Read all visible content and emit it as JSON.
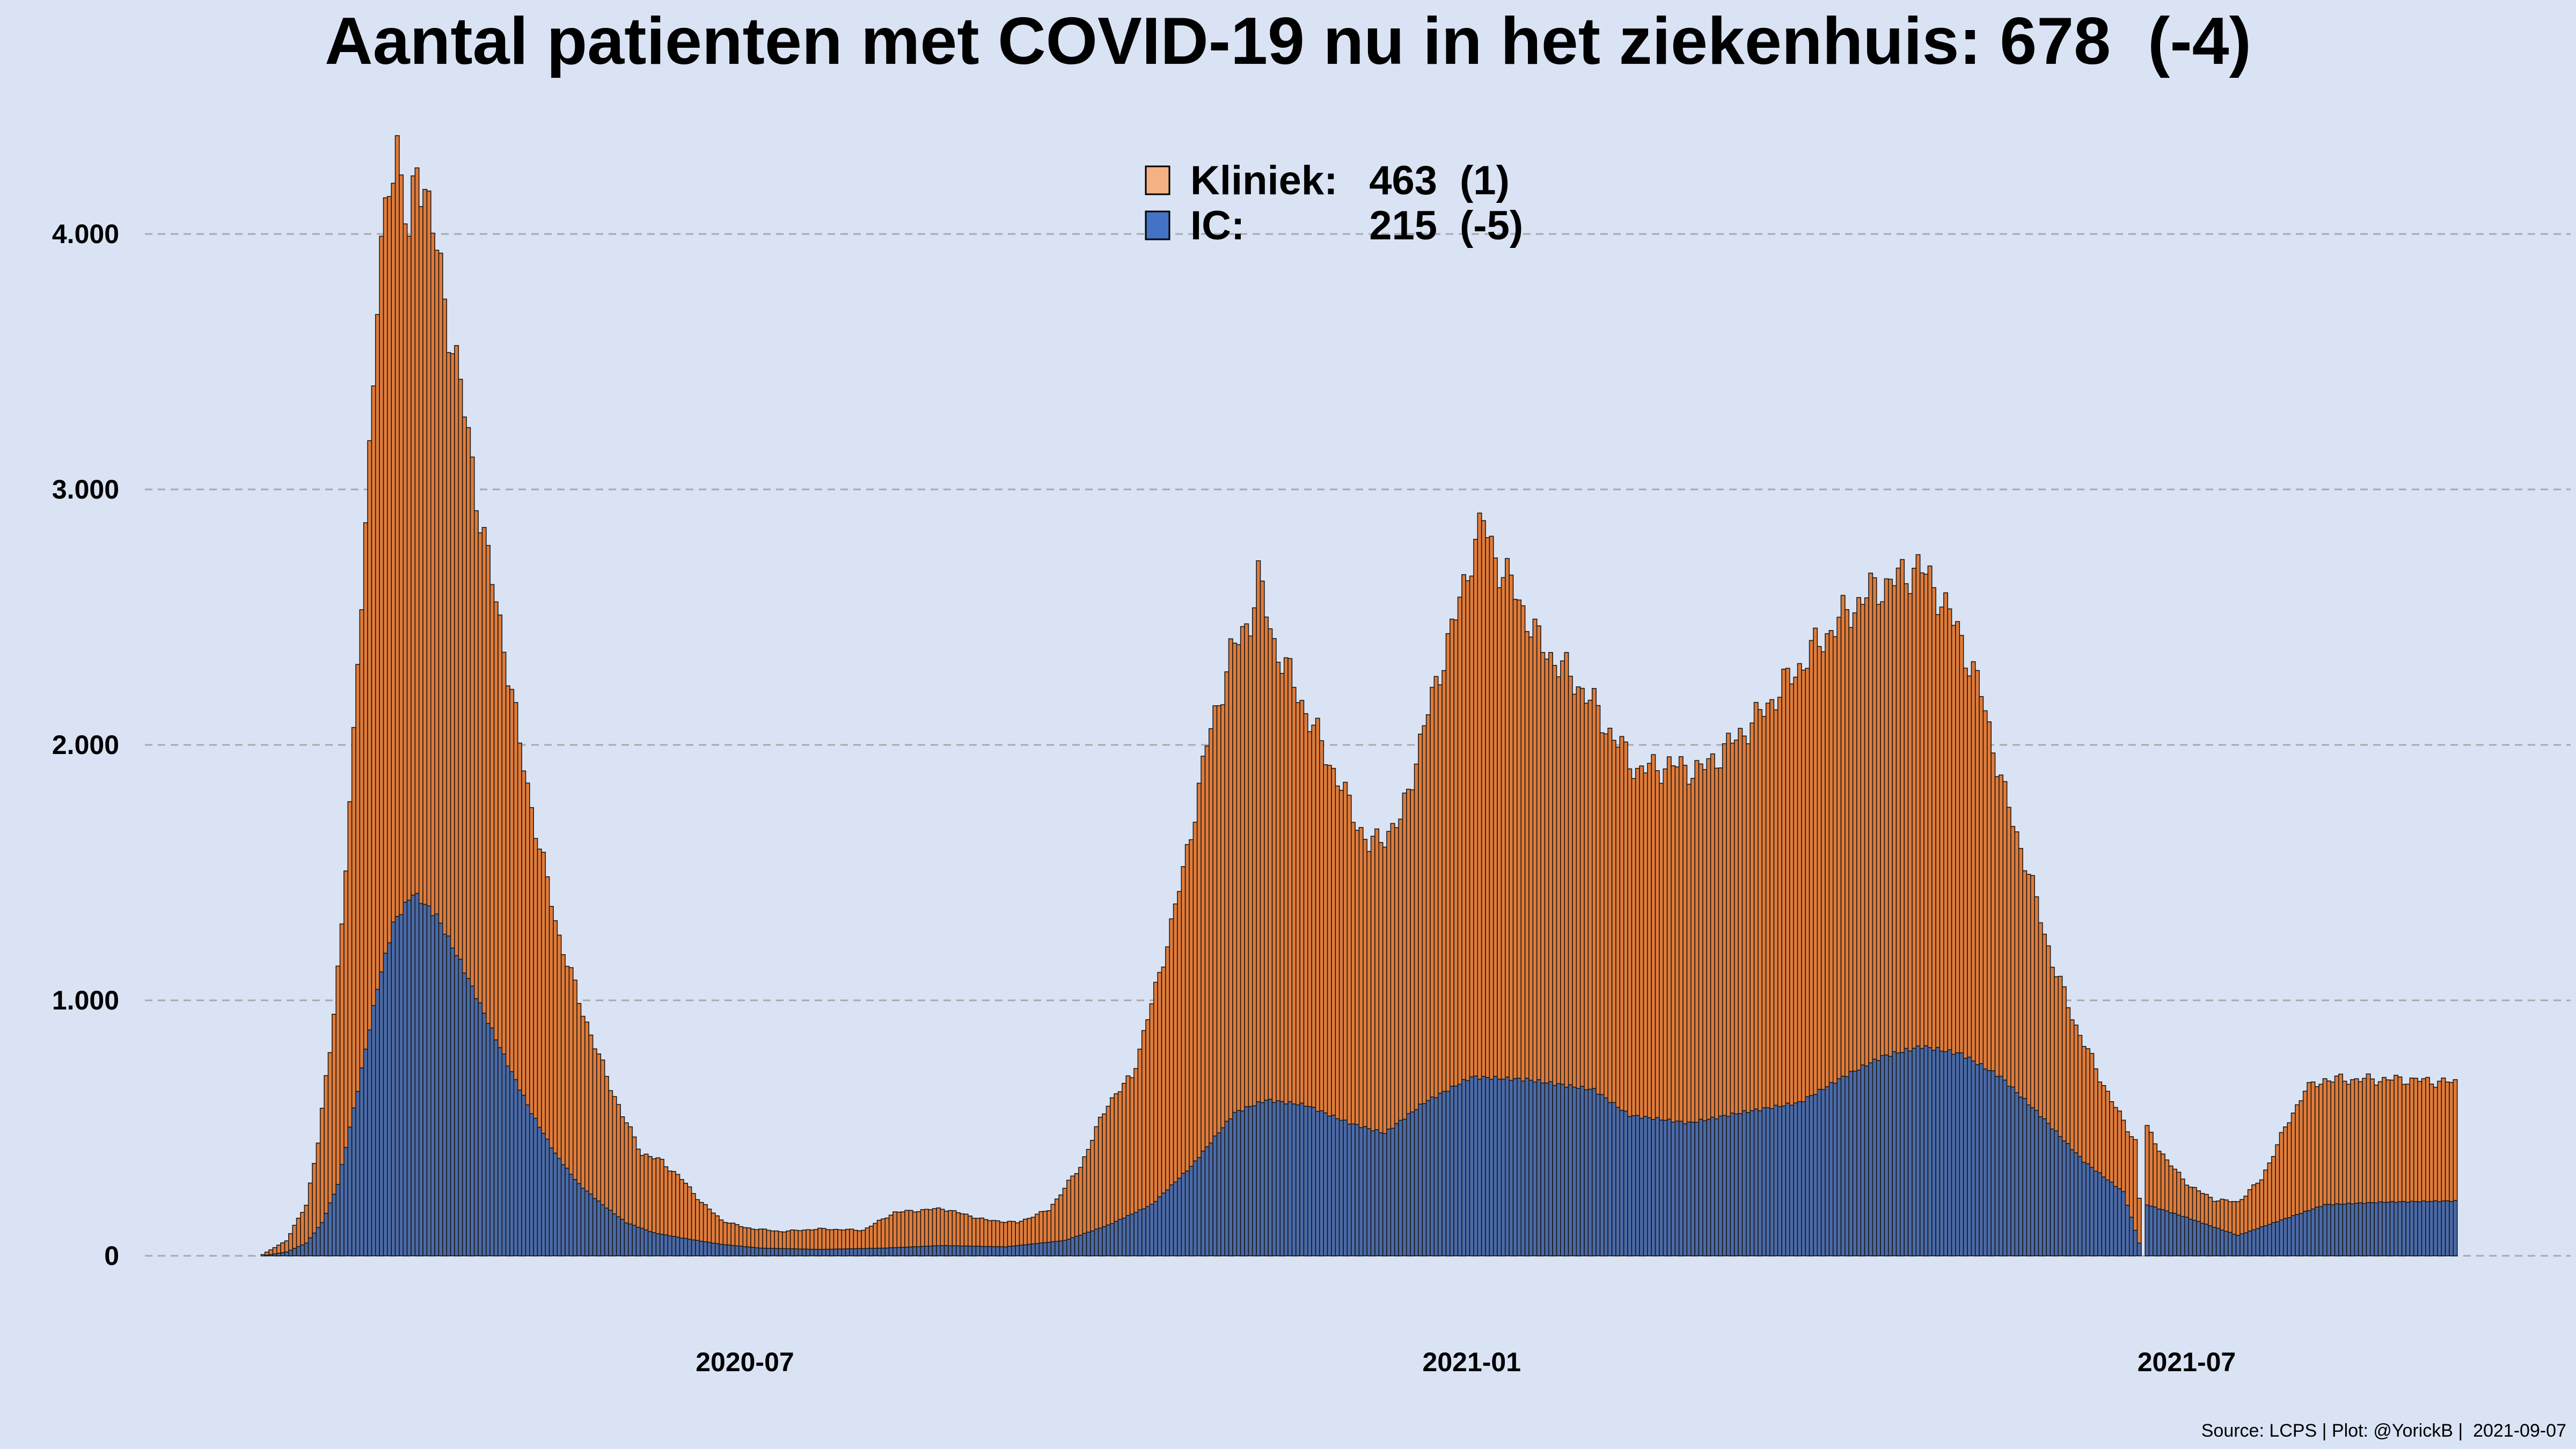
{
  "title": "Aantal patienten met COVID-19 nu in het ziekenhuis: 678  (-4)",
  "source_note": "Source: LCPS | Plot: @YorickB |  2021-09-07",
  "colors": {
    "background": "#d9e3f4",
    "kliniek": "#e07b39",
    "ic": "#4a6aa8",
    "legend_kliniek": "#f4b183",
    "legend_ic": "#4472c4",
    "grid": "#a9a9a9",
    "bar_outline": "#1a1a1a"
  },
  "legend": {
    "placement": "top-center",
    "items": [
      {
        "label": "Kliniek:",
        "value": "463",
        "change": "(1)",
        "color_key": "legend_kliniek"
      },
      {
        "label": "IC:",
        "value": "215",
        "change": "(-5)",
        "color_key": "legend_ic"
      }
    ]
  },
  "chart_data": {
    "type": "bar",
    "stacked": true,
    "title": "Aantal patienten met COVID-19 nu in het ziekenhuis: 678  (-4)",
    "xlabel": "",
    "ylabel": "",
    "ylim": [
      0,
      4400
    ],
    "y_ticks": [
      0,
      1000,
      2000,
      3000,
      4000
    ],
    "y_tick_labels": [
      "0",
      "1.000",
      "2.000",
      "3.000",
      "4.000"
    ],
    "x_range": [
      "2020-03-01",
      "2021-09-07"
    ],
    "x_ticks": [
      "2020-07-01",
      "2021-01-01",
      "2021-07-01"
    ],
    "x_tick_labels": [
      "2020-07",
      "2021-01",
      "2021-07"
    ],
    "grid": "horizontal dashed",
    "series_total_anchors": [
      [
        "2020-03-01",
        5
      ],
      [
        "2020-03-07",
        60
      ],
      [
        "2020-03-12",
        200
      ],
      [
        "2020-03-15",
        450
      ],
      [
        "2020-03-18",
        800
      ],
      [
        "2020-03-21",
        1300
      ],
      [
        "2020-03-24",
        2000
      ],
      [
        "2020-03-27",
        2900
      ],
      [
        "2020-03-30",
        3700
      ],
      [
        "2020-04-02",
        4250
      ],
      [
        "2020-04-04",
        4350
      ],
      [
        "2020-04-07",
        3930
      ],
      [
        "2020-04-09",
        4320
      ],
      [
        "2020-04-12",
        4100
      ],
      [
        "2020-04-16",
        3750
      ],
      [
        "2020-04-20",
        3400
      ],
      [
        "2020-04-26",
        2800
      ],
      [
        "2020-05-01",
        2400
      ],
      [
        "2020-05-05",
        2000
      ],
      [
        "2020-05-10",
        1600
      ],
      [
        "2020-05-15",
        1250
      ],
      [
        "2020-05-20",
        1000
      ],
      [
        "2020-05-25",
        780
      ],
      [
        "2020-05-31",
        550
      ],
      [
        "2020-06-05",
        400
      ],
      [
        "2020-06-10",
        370
      ],
      [
        "2020-06-15",
        300
      ],
      [
        "2020-06-20",
        210
      ],
      [
        "2020-06-25",
        140
      ],
      [
        "2020-07-01",
        110
      ],
      [
        "2020-07-10",
        95
      ],
      [
        "2020-07-20",
        105
      ],
      [
        "2020-07-31",
        100
      ],
      [
        "2020-08-08",
        170
      ],
      [
        "2020-08-20",
        185
      ],
      [
        "2020-08-31",
        140
      ],
      [
        "2020-09-08",
        130
      ],
      [
        "2020-09-16",
        180
      ],
      [
        "2020-09-24",
        350
      ],
      [
        "2020-10-01",
        600
      ],
      [
        "2020-10-07",
        700
      ],
      [
        "2020-10-14",
        1100
      ],
      [
        "2020-10-20",
        1500
      ],
      [
        "2020-10-26",
        2000
      ],
      [
        "2020-11-01",
        2350
      ],
      [
        "2020-11-06",
        2500
      ],
      [
        "2020-11-08",
        2650
      ],
      [
        "2020-11-12",
        2400
      ],
      [
        "2020-11-18",
        2200
      ],
      [
        "2020-11-24",
        2000
      ],
      [
        "2020-11-30",
        1800
      ],
      [
        "2020-12-03",
        1700
      ],
      [
        "2020-12-06",
        1600
      ],
      [
        "2020-12-10",
        1650
      ],
      [
        "2020-12-14",
        1700
      ],
      [
        "2020-12-18",
        1950
      ],
      [
        "2020-12-24",
        2300
      ],
      [
        "2020-12-28",
        2500
      ],
      [
        "2021-01-01",
        2750
      ],
      [
        "2021-01-04",
        2870
      ],
      [
        "2021-01-08",
        2700
      ],
      [
        "2021-01-12",
        2600
      ],
      [
        "2021-01-18",
        2400
      ],
      [
        "2021-01-24",
        2300
      ],
      [
        "2021-01-30",
        2200
      ],
      [
        "2021-02-05",
        2050
      ],
      [
        "2021-02-12",
        1900
      ],
      [
        "2021-02-20",
        1920
      ],
      [
        "2021-02-28",
        1900
      ],
      [
        "2021-03-06",
        1980
      ],
      [
        "2021-03-14",
        2100
      ],
      [
        "2021-03-22",
        2250
      ],
      [
        "2021-03-30",
        2400
      ],
      [
        "2021-04-05",
        2500
      ],
      [
        "2021-04-12",
        2600
      ],
      [
        "2021-04-19",
        2650
      ],
      [
        "2021-04-24",
        2700
      ],
      [
        "2021-04-29",
        2600
      ],
      [
        "2021-05-04",
        2450
      ],
      [
        "2021-05-10",
        2200
      ],
      [
        "2021-05-16",
        1800
      ],
      [
        "2021-05-22",
        1500
      ],
      [
        "2021-05-28",
        1150
      ],
      [
        "2021-06-03",
        900
      ],
      [
        "2021-06-09",
        700
      ],
      [
        "2021-06-14",
        550
      ],
      [
        "2021-06-18",
        450
      ],
      [
        "2021-06-20",
        0
      ],
      [
        "2021-06-21",
        500
      ],
      [
        "2021-06-26",
        370
      ],
      [
        "2021-07-02",
        270
      ],
      [
        "2021-07-08",
        220
      ],
      [
        "2021-07-14",
        210
      ],
      [
        "2021-07-20",
        300
      ],
      [
        "2021-07-26",
        500
      ],
      [
        "2021-07-31",
        650
      ],
      [
        "2021-08-05",
        690
      ],
      [
        "2021-08-15",
        690
      ],
      [
        "2021-08-25",
        690
      ],
      [
        "2021-09-07",
        678
      ]
    ],
    "series_ic_anchors": [
      [
        "2020-03-01",
        0
      ],
      [
        "2020-03-07",
        15
      ],
      [
        "2020-03-12",
        50
      ],
      [
        "2020-03-16",
        130
      ],
      [
        "2020-03-20",
        280
      ],
      [
        "2020-03-25",
        650
      ],
      [
        "2020-03-30",
        1050
      ],
      [
        "2020-04-03",
        1300
      ],
      [
        "2020-04-08",
        1420
      ],
      [
        "2020-04-14",
        1330
      ],
      [
        "2020-04-20",
        1150
      ],
      [
        "2020-04-26",
        950
      ],
      [
        "2020-05-02",
        750
      ],
      [
        "2020-05-08",
        560
      ],
      [
        "2020-05-14",
        400
      ],
      [
        "2020-05-20",
        280
      ],
      [
        "2020-05-26",
        200
      ],
      [
        "2020-06-01",
        130
      ],
      [
        "2020-06-08",
        90
      ],
      [
        "2020-06-15",
        70
      ],
      [
        "2020-06-25",
        45
      ],
      [
        "2020-07-05",
        30
      ],
      [
        "2020-07-20",
        25
      ],
      [
        "2020-08-05",
        30
      ],
      [
        "2020-08-20",
        40
      ],
      [
        "2020-09-05",
        35
      ],
      [
        "2020-09-20",
        60
      ],
      [
        "2020-10-01",
        120
      ],
      [
        "2020-10-12",
        200
      ],
      [
        "2020-10-22",
        350
      ],
      [
        "2020-11-02",
        560
      ],
      [
        "2020-11-10",
        610
      ],
      [
        "2020-11-20",
        590
      ],
      [
        "2020-12-01",
        520
      ],
      [
        "2020-12-10",
        480
      ],
      [
        "2020-12-20",
        600
      ],
      [
        "2021-01-01",
        700
      ],
      [
        "2021-01-15",
        690
      ],
      [
        "2021-02-01",
        650
      ],
      [
        "2021-02-10",
        550
      ],
      [
        "2021-02-25",
        520
      ],
      [
        "2021-03-10",
        560
      ],
      [
        "2021-03-25",
        600
      ],
      [
        "2021-04-05",
        700
      ],
      [
        "2021-04-15",
        780
      ],
      [
        "2021-04-25",
        820
      ],
      [
        "2021-05-05",
        790
      ],
      [
        "2021-05-15",
        700
      ],
      [
        "2021-05-25",
        550
      ],
      [
        "2021-06-05",
        370
      ],
      [
        "2021-06-15",
        250
      ],
      [
        "2021-06-20",
        0
      ],
      [
        "2021-06-21",
        200
      ],
      [
        "2021-07-01",
        150
      ],
      [
        "2021-07-14",
        80
      ],
      [
        "2021-07-25",
        140
      ],
      [
        "2021-08-05",
        200
      ],
      [
        "2021-08-20",
        210
      ],
      [
        "2021-09-07",
        215
      ]
    ]
  }
}
